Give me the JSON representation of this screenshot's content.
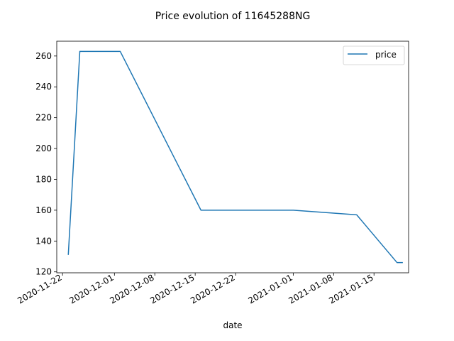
{
  "chart_data": {
    "type": "line",
    "title": "Price evolution of 11645288NG",
    "xlabel": "date",
    "ylabel": "",
    "x_ticks": [
      "2020-11-22",
      "2020-12-01",
      "2020-12-08",
      "2020-12-15",
      "2020-12-22",
      "2021-01-01",
      "2021-01-08",
      "2021-01-15"
    ],
    "y_ticks": [
      120,
      140,
      160,
      180,
      200,
      220,
      240,
      260
    ],
    "xlim": [
      "2020-11-21",
      "2021-01-21"
    ],
    "ylim": [
      119.4,
      269.6
    ],
    "grid": false,
    "legend": "top-right",
    "series": [
      {
        "name": "price",
        "color": "#1f77b4",
        "points": [
          {
            "date": "2020-11-23",
            "value": 131
          },
          {
            "date": "2020-11-25",
            "value": 263
          },
          {
            "date": "2020-12-02",
            "value": 263
          },
          {
            "date": "2020-12-16",
            "value": 160
          },
          {
            "date": "2021-01-01",
            "value": 160
          },
          {
            "date": "2021-01-12",
            "value": 157
          },
          {
            "date": "2021-01-19",
            "value": 126
          },
          {
            "date": "2021-01-20",
            "value": 126
          }
        ]
      }
    ]
  }
}
